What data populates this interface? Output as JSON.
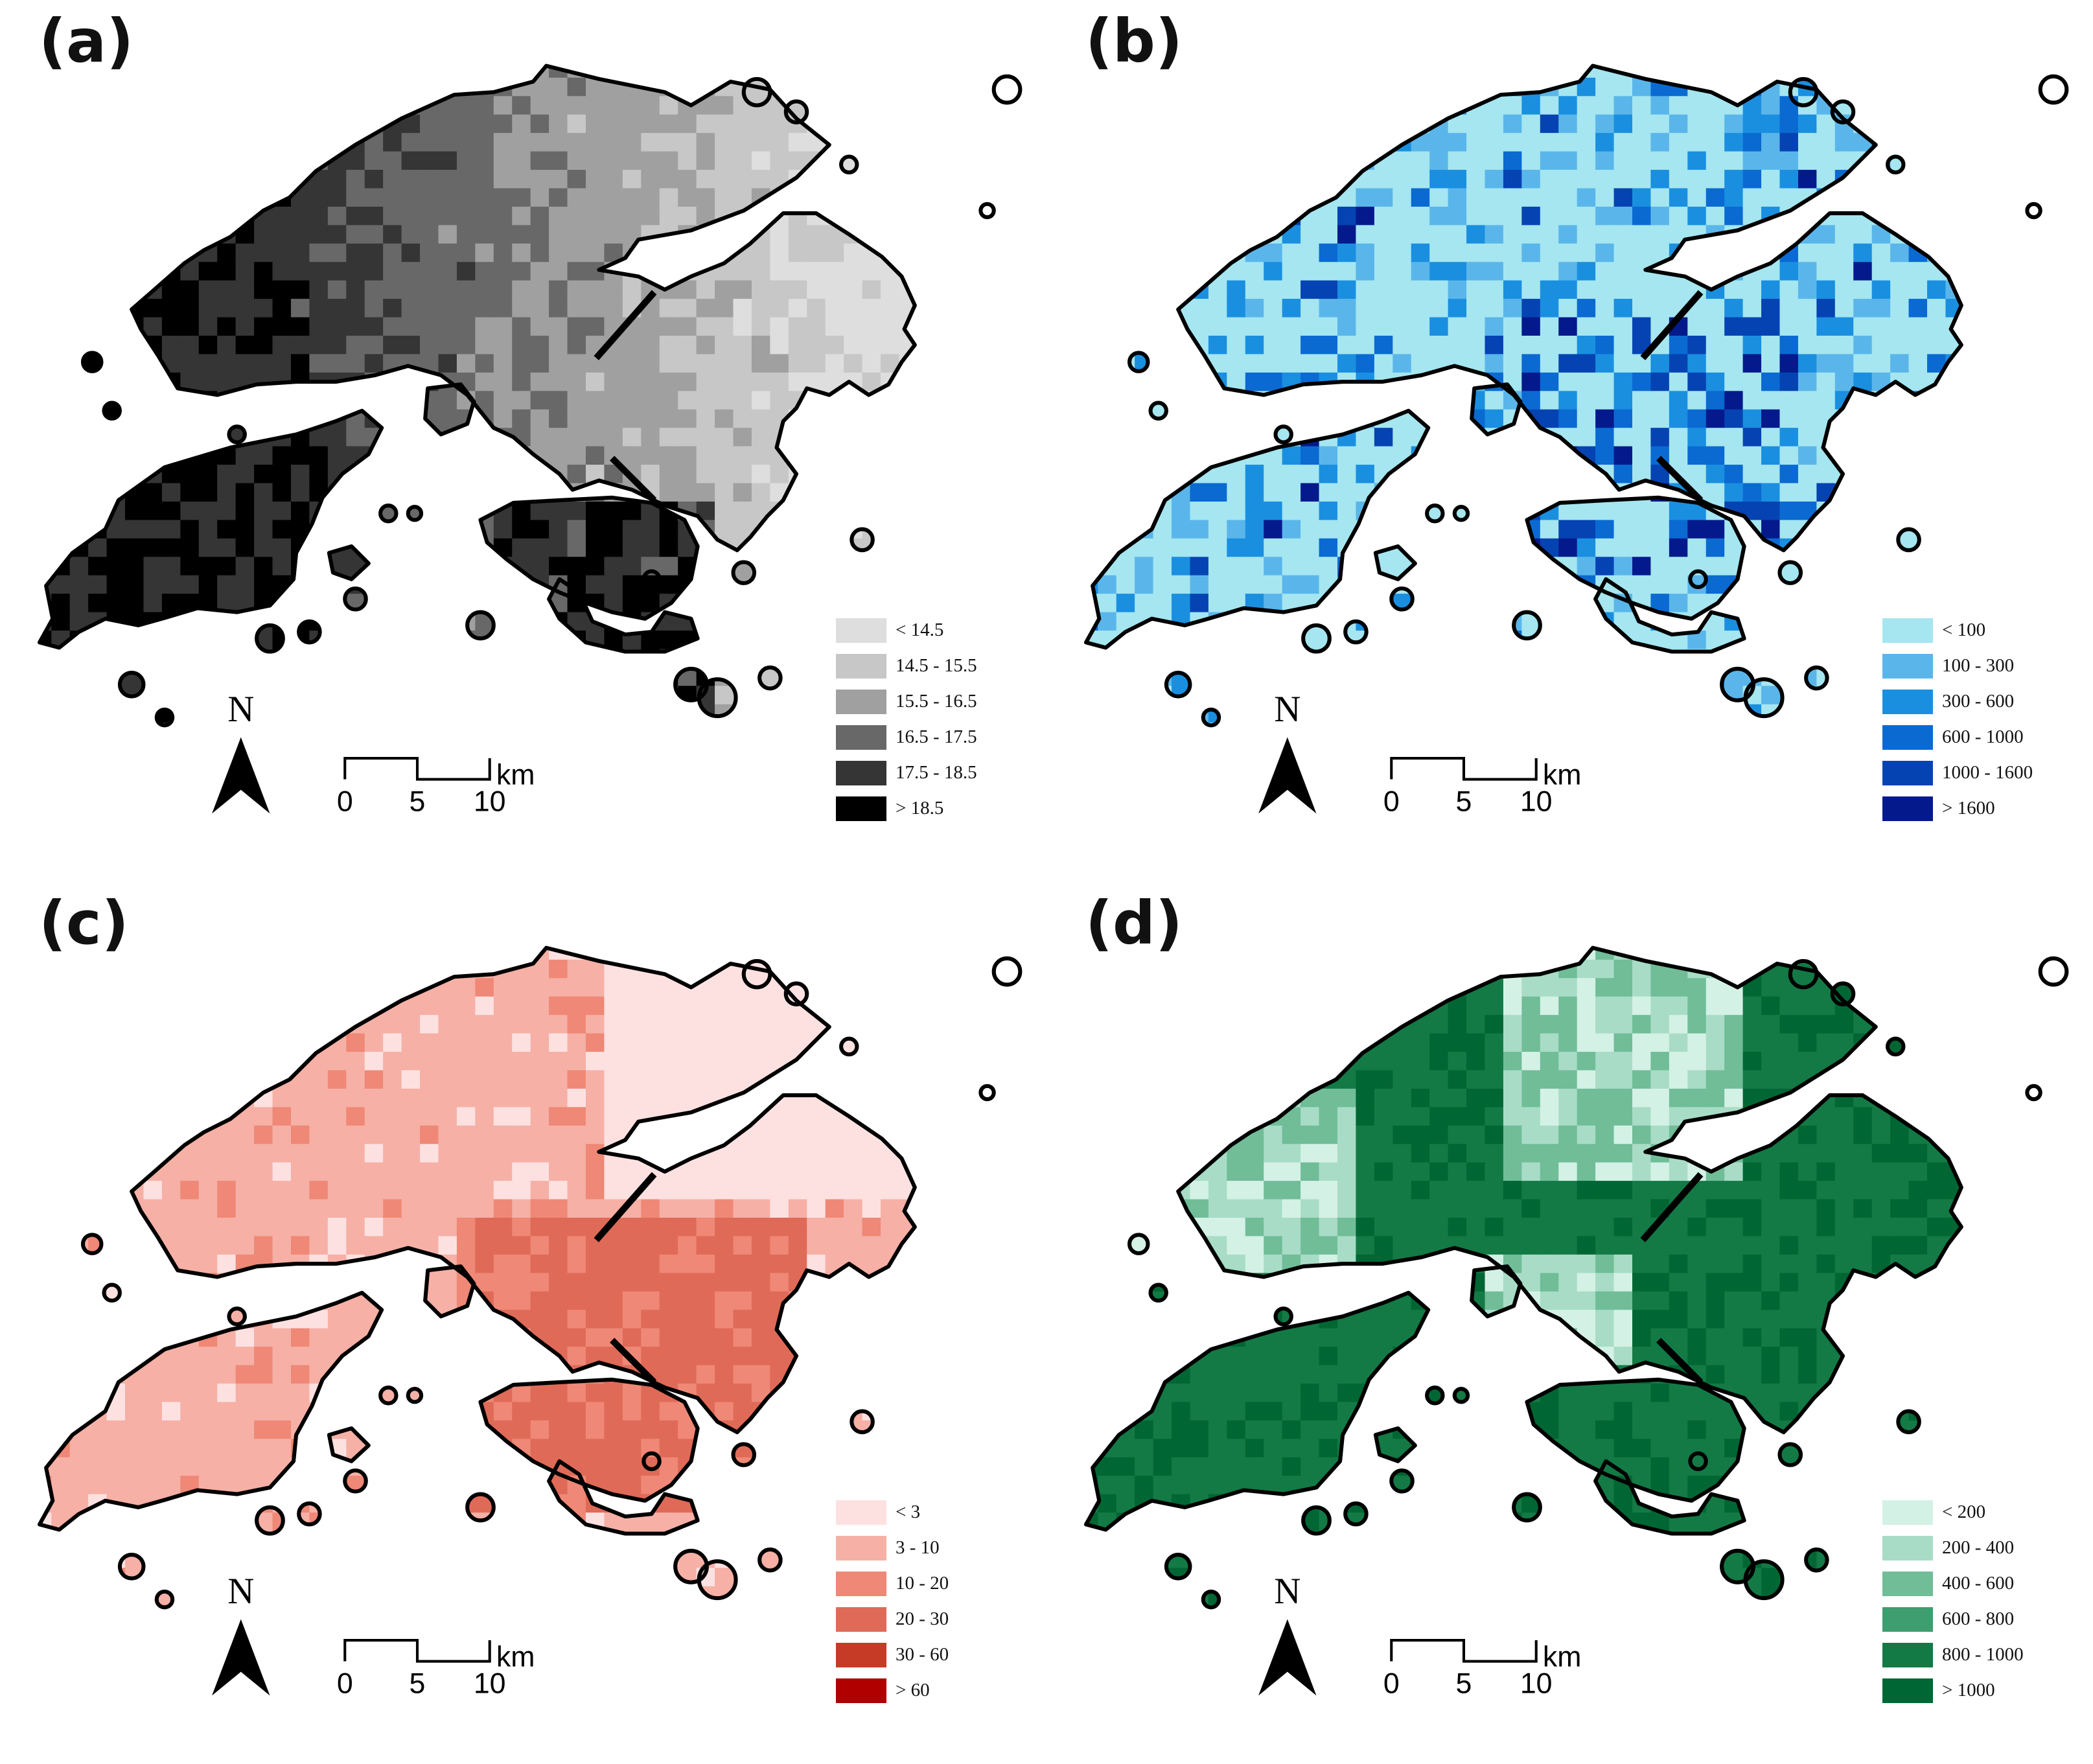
{
  "panels": [
    {
      "label": "(a)",
      "colors": [
        "#dedede",
        "#c7c7c7",
        "#a0a0a0",
        "#686868",
        "#353535",
        "#000000"
      ],
      "pattern": "gradient",
      "legend": [
        "< 14.5",
        "14.5 - 15.5",
        "15.5 - 16.5",
        "16.5 - 17.5",
        "17.5 - 18.5",
        "> 18.5"
      ]
    },
    {
      "label": "(b)",
      "colors": [
        "#a5e6f0",
        "#5ab6ea",
        "#1a8fe0",
        "#0a6ad2",
        "#0643b2",
        "#041a8c"
      ],
      "pattern": "blue",
      "legend": [
        "< 100",
        "100 - 300",
        "300 - 600",
        "600 - 1000",
        "1000 - 1600",
        "> 1600"
      ]
    },
    {
      "label": "(c)",
      "colors": [
        "#fde1e1",
        "#f6b0a6",
        "#ef8876",
        "#e06a58",
        "#c63b26",
        "#b00000"
      ],
      "pattern": "red",
      "legend": [
        "< 3",
        "3 - 10",
        "10 - 20",
        "20 - 30",
        "30 - 60",
        "> 60"
      ]
    },
    {
      "label": "(d)",
      "colors": [
        "#d4f1e6",
        "#a8dcc6",
        "#70bd98",
        "#3e9e70",
        "#137a45",
        "#006633"
      ],
      "pattern": "green",
      "legend": [
        "< 200",
        "200 - 400",
        "400 - 600",
        "600 - 800",
        "800 - 1000",
        "> 1000"
      ]
    }
  ],
  "north_letter": "N",
  "scale": {
    "ticks": [
      "0",
      "5",
      "10"
    ],
    "unit": "km"
  }
}
